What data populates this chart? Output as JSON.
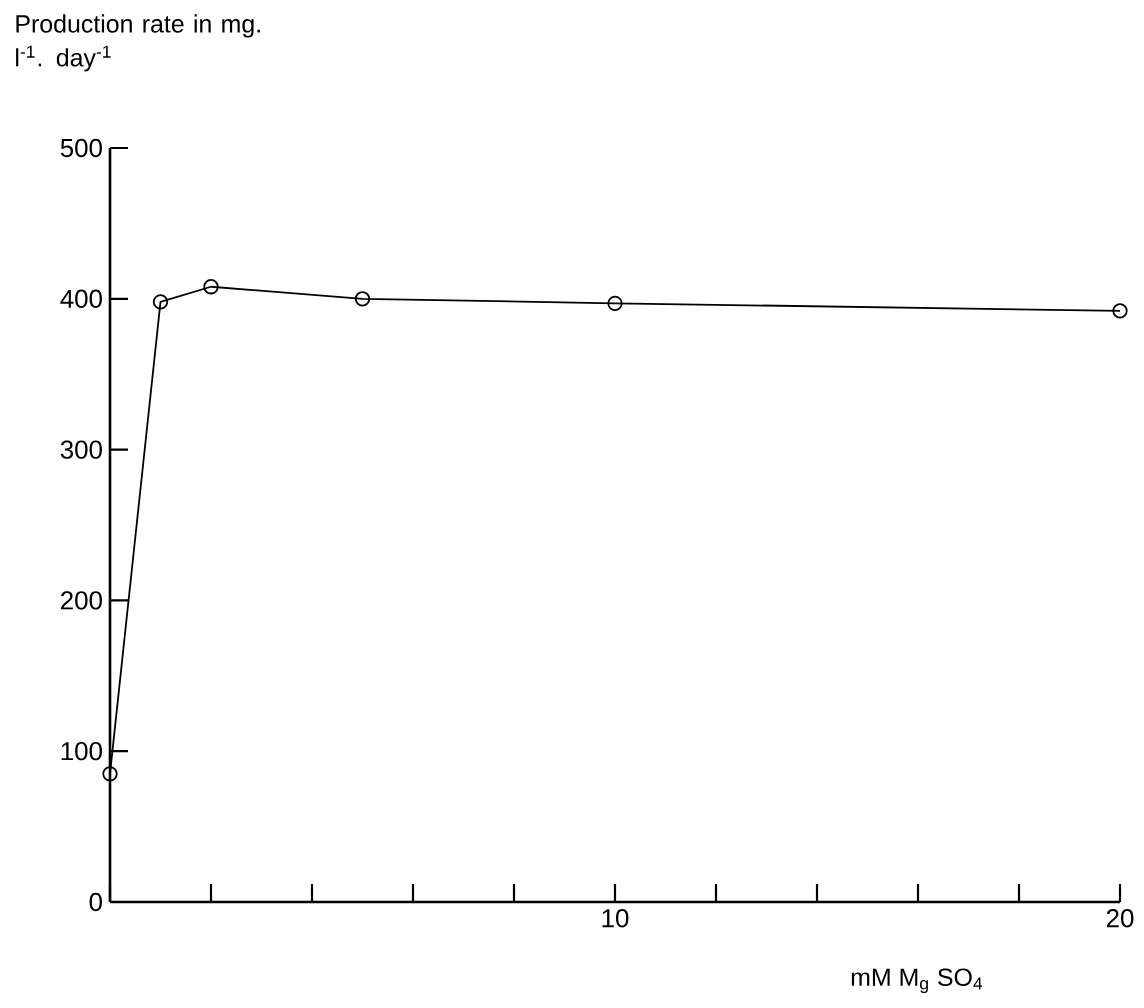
{
  "chart_data": {
    "type": "line",
    "ylabel": "Production rate in mg. l$^{-1}$. day$^{-1}$",
    "xlabel": "mM M$_{g}$ SO$_{4}$",
    "x": [
      0,
      1,
      2,
      5,
      10,
      20
    ],
    "series": [
      {
        "color": "#000000",
        "values": [
          85,
          398,
          408,
          400,
          397,
          392
        ]
      }
    ],
    "xlim": [
      0,
      20
    ],
    "ylim": [
      0,
      500
    ],
    "xticks": [
      {
        "value": 0,
        "label": null
      },
      {
        "value": 2,
        "label": null
      },
      {
        "value": 4,
        "label": null
      },
      {
        "value": 6,
        "label": null
      },
      {
        "value": 8,
        "label": null
      },
      10,
      {
        "value": 12,
        "label": null
      },
      {
        "value": 14,
        "label": null
      },
      {
        "value": 16,
        "label": null
      },
      {
        "value": 18,
        "label": null
      },
      20
    ],
    "yticks": [
      0,
      100,
      200,
      300,
      400,
      500
    ],
    "marker": "circle",
    "line_style": "solid",
    "grid": false
  }
}
